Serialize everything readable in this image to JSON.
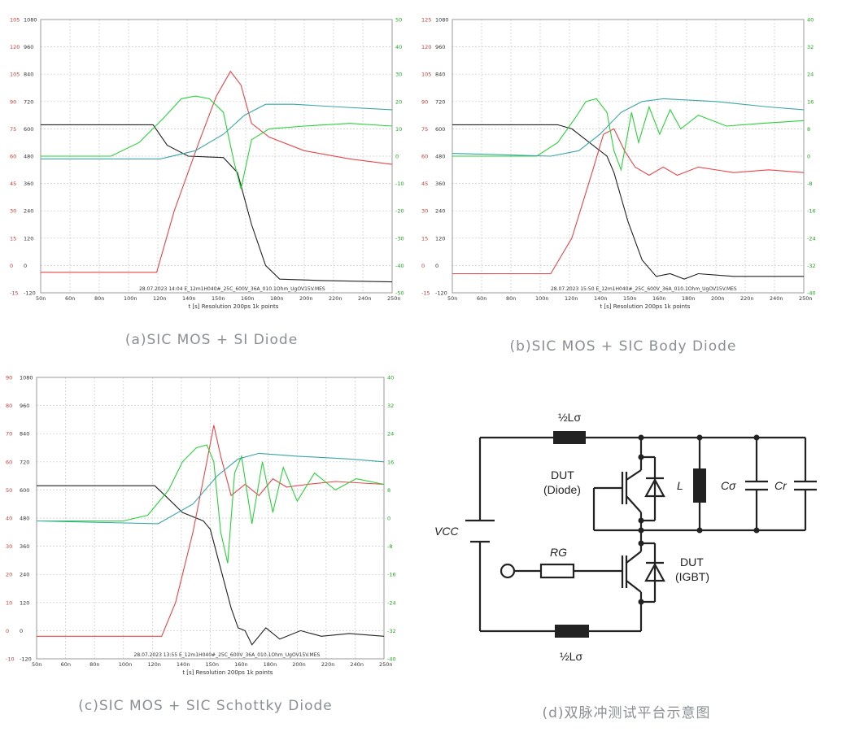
{
  "captions": {
    "a": "(a)SIC MOS + SI Diode",
    "b": "(b)SIC MOS + SIC Body Diode",
    "c": "(c)SIC MOS + SIC Schottky Diode",
    "d": "(d)双脉冲测试平台示意图"
  },
  "colors": {
    "current": "#e8454a",
    "vds": "#222222",
    "vgs": "#2ad13a",
    "vmain": "#3aa6a6"
  },
  "chart_data": [
    {
      "type": "line",
      "id": "a",
      "info": "28.07.2023 14:04  E_12m1H040#_25C_600V_36A_010.1Ohm_UgOV15V.MES",
      "xlabel": "t [s]   Resolution 200ps   1k points",
      "x_ticks": [
        "50n",
        "60n",
        "80n",
        "100n",
        "120n",
        "140n",
        "150n",
        "160n",
        "180n",
        "200n",
        "220n",
        "240n",
        "250n"
      ],
      "left1_ticks": [
        "105",
        "120",
        "105",
        "90",
        "75",
        "60",
        "45",
        "30",
        "15",
        "0",
        "-15"
      ],
      "left2_ticks": [
        "1080",
        "960",
        "840",
        "720",
        "600",
        "480",
        "360",
        "240",
        "120",
        "0",
        "-120"
      ],
      "right_ticks": [
        "50",
        "40",
        "30",
        "20",
        "10",
        "0",
        "-10",
        "-20",
        "-30",
        "-40",
        "-50"
      ],
      "series": [
        {
          "key": "vds",
          "points": [
            [
              0,
              0.615
            ],
            [
              0.32,
              0.615
            ],
            [
              0.36,
              0.54
            ],
            [
              0.42,
              0.5
            ],
            [
              0.52,
              0.495
            ],
            [
              0.56,
              0.44
            ],
            [
              0.6,
              0.25
            ],
            [
              0.64,
              0.1
            ],
            [
              0.68,
              0.05
            ],
            [
              0.8,
              0.045
            ],
            [
              1,
              0.04
            ]
          ]
        },
        {
          "key": "current",
          "points": [
            [
              0,
              0.075
            ],
            [
              0.33,
              0.075
            ],
            [
              0.38,
              0.3
            ],
            [
              0.45,
              0.55
            ],
            [
              0.5,
              0.72
            ],
            [
              0.54,
              0.81
            ],
            [
              0.57,
              0.76
            ],
            [
              0.6,
              0.62
            ],
            [
              0.65,
              0.57
            ],
            [
              0.75,
              0.52
            ],
            [
              0.88,
              0.49
            ],
            [
              1,
              0.47
            ]
          ]
        },
        {
          "key": "vgs",
          "points": [
            [
              0,
              0.5
            ],
            [
              0.2,
              0.5
            ],
            [
              0.28,
              0.55
            ],
            [
              0.35,
              0.64
            ],
            [
              0.4,
              0.71
            ],
            [
              0.44,
              0.72
            ],
            [
              0.48,
              0.71
            ],
            [
              0.52,
              0.66
            ],
            [
              0.55,
              0.48
            ],
            [
              0.57,
              0.38
            ],
            [
              0.6,
              0.56
            ],
            [
              0.65,
              0.6
            ],
            [
              0.75,
              0.61
            ],
            [
              0.88,
              0.62
            ],
            [
              1,
              0.61
            ]
          ]
        },
        {
          "key": "vmain",
          "points": [
            [
              0,
              0.49
            ],
            [
              0.34,
              0.49
            ],
            [
              0.44,
              0.52
            ],
            [
              0.52,
              0.58
            ],
            [
              0.58,
              0.65
            ],
            [
              0.64,
              0.69
            ],
            [
              0.72,
              0.69
            ],
            [
              0.85,
              0.68
            ],
            [
              1,
              0.67
            ]
          ]
        }
      ]
    },
    {
      "type": "line",
      "id": "b",
      "info": "28.07.2023 15:50  E_12m1H040#_25C_600V_36A_010.1Ohm_UgOV15V.MES",
      "xlabel": "t [s]   Resolution 200ps   1k points",
      "x_ticks": [
        "50n",
        "60n",
        "80n",
        "100n",
        "120n",
        "140n",
        "150n",
        "160n",
        "180n",
        "200n",
        "220n",
        "240n",
        "250n"
      ],
      "left1_ticks": [
        "125",
        "120",
        "105",
        "90",
        "75",
        "60",
        "45",
        "30",
        "15",
        "0",
        "-15"
      ],
      "left2_ticks": [
        "1080",
        "960",
        "840",
        "720",
        "600",
        "480",
        "360",
        "240",
        "120",
        "0",
        "-120"
      ],
      "right_ticks": [
        "40",
        "32",
        "24",
        "16",
        "8",
        "0",
        "-8",
        "-16",
        "-24",
        "-32",
        "-40"
      ],
      "series": [
        {
          "key": "vds",
          "points": [
            [
              0,
              0.615
            ],
            [
              0.3,
              0.615
            ],
            [
              0.34,
              0.6
            ],
            [
              0.4,
              0.54
            ],
            [
              0.44,
              0.5
            ],
            [
              0.46,
              0.44
            ],
            [
              0.5,
              0.26
            ],
            [
              0.54,
              0.12
            ],
            [
              0.58,
              0.06
            ],
            [
              0.62,
              0.07
            ],
            [
              0.66,
              0.05
            ],
            [
              0.7,
              0.07
            ],
            [
              0.8,
              0.06
            ],
            [
              1,
              0.06
            ]
          ]
        },
        {
          "key": "current",
          "points": [
            [
              0,
              0.07
            ],
            [
              0.28,
              0.07
            ],
            [
              0.34,
              0.2
            ],
            [
              0.4,
              0.45
            ],
            [
              0.43,
              0.58
            ],
            [
              0.46,
              0.6
            ],
            [
              0.49,
              0.52
            ],
            [
              0.52,
              0.46
            ],
            [
              0.56,
              0.43
            ],
            [
              0.6,
              0.46
            ],
            [
              0.64,
              0.43
            ],
            [
              0.7,
              0.46
            ],
            [
              0.8,
              0.44
            ],
            [
              0.9,
              0.45
            ],
            [
              1,
              0.44
            ]
          ]
        },
        {
          "key": "vgs",
          "points": [
            [
              0,
              0.5
            ],
            [
              0.24,
              0.5
            ],
            [
              0.3,
              0.55
            ],
            [
              0.35,
              0.64
            ],
            [
              0.38,
              0.7
            ],
            [
              0.41,
              0.71
            ],
            [
              0.44,
              0.66
            ],
            [
              0.46,
              0.52
            ],
            [
              0.48,
              0.45
            ],
            [
              0.51,
              0.66
            ],
            [
              0.53,
              0.55
            ],
            [
              0.56,
              0.68
            ],
            [
              0.59,
              0.58
            ],
            [
              0.62,
              0.67
            ],
            [
              0.65,
              0.6
            ],
            [
              0.7,
              0.65
            ],
            [
              0.78,
              0.61
            ],
            [
              0.88,
              0.62
            ],
            [
              1,
              0.63
            ]
          ]
        },
        {
          "key": "vmain",
          "points": [
            [
              0,
              0.51
            ],
            [
              0.28,
              0.5
            ],
            [
              0.36,
              0.52
            ],
            [
              0.42,
              0.58
            ],
            [
              0.48,
              0.66
            ],
            [
              0.54,
              0.7
            ],
            [
              0.6,
              0.71
            ],
            [
              0.75,
              0.7
            ],
            [
              0.9,
              0.68
            ],
            [
              1,
              0.67
            ]
          ]
        }
      ]
    },
    {
      "type": "line",
      "id": "c",
      "info": "28.07.2023 13:55  E_12m1H040#_25C_600V_36A_010.1Ohm_UgOV15V.MES",
      "xlabel": "t [s]   Resolution 200ps   1k points",
      "x_ticks": [
        "50n",
        "60n",
        "80n",
        "100n",
        "120n",
        "140n",
        "150n",
        "160n",
        "180n",
        "200n",
        "220n",
        "240n",
        "250n"
      ],
      "left1_ticks": [
        "90",
        "80",
        "70",
        "60",
        "50",
        "40",
        "30",
        "20",
        "10",
        "0",
        "-10"
      ],
      "left2_ticks": [
        "1080",
        "960",
        "840",
        "720",
        "600",
        "480",
        "360",
        "240",
        "120",
        "0",
        "-120"
      ],
      "right_ticks": [
        "40",
        "32",
        "24",
        "16",
        "8",
        "0",
        "-8",
        "-16",
        "-24",
        "-32",
        "-40"
      ],
      "series": [
        {
          "key": "vds",
          "points": [
            [
              0,
              0.615
            ],
            [
              0.34,
              0.615
            ],
            [
              0.37,
              0.58
            ],
            [
              0.42,
              0.52
            ],
            [
              0.48,
              0.49
            ],
            [
              0.5,
              0.46
            ],
            [
              0.53,
              0.32
            ],
            [
              0.56,
              0.18
            ],
            [
              0.58,
              0.11
            ],
            [
              0.6,
              0.1
            ],
            [
              0.62,
              0.05
            ],
            [
              0.66,
              0.11
            ],
            [
              0.7,
              0.07
            ],
            [
              0.76,
              0.1
            ],
            [
              0.82,
              0.08
            ],
            [
              0.9,
              0.09
            ],
            [
              1,
              0.08
            ]
          ]
        },
        {
          "key": "current",
          "points": [
            [
              0,
              0.08
            ],
            [
              0.36,
              0.08
            ],
            [
              0.4,
              0.2
            ],
            [
              0.45,
              0.45
            ],
            [
              0.49,
              0.7
            ],
            [
              0.51,
              0.83
            ],
            [
              0.53,
              0.72
            ],
            [
              0.56,
              0.58
            ],
            [
              0.6,
              0.62
            ],
            [
              0.64,
              0.58
            ],
            [
              0.68,
              0.64
            ],
            [
              0.72,
              0.61
            ],
            [
              0.78,
              0.62
            ],
            [
              0.86,
              0.63
            ],
            [
              1,
              0.62
            ]
          ]
        },
        {
          "key": "vgs",
          "points": [
            [
              0,
              0.49
            ],
            [
              0.25,
              0.49
            ],
            [
              0.32,
              0.51
            ],
            [
              0.38,
              0.6
            ],
            [
              0.42,
              0.7
            ],
            [
              0.46,
              0.75
            ],
            [
              0.49,
              0.76
            ],
            [
              0.51,
              0.7
            ],
            [
              0.53,
              0.45
            ],
            [
              0.55,
              0.34
            ],
            [
              0.57,
              0.66
            ],
            [
              0.59,
              0.72
            ],
            [
              0.62,
              0.48
            ],
            [
              0.65,
              0.7
            ],
            [
              0.68,
              0.52
            ],
            [
              0.71,
              0.68
            ],
            [
              0.75,
              0.56
            ],
            [
              0.8,
              0.66
            ],
            [
              0.86,
              0.6
            ],
            [
              0.92,
              0.64
            ],
            [
              1,
              0.62
            ]
          ]
        },
        {
          "key": "vmain",
          "points": [
            [
              0,
              0.49
            ],
            [
              0.35,
              0.48
            ],
            [
              0.45,
              0.55
            ],
            [
              0.52,
              0.65
            ],
            [
              0.58,
              0.71
            ],
            [
              0.64,
              0.73
            ],
            [
              0.75,
              0.72
            ],
            [
              0.9,
              0.71
            ],
            [
              1,
              0.7
            ]
          ]
        }
      ]
    }
  ],
  "circuit": {
    "l_top": "½Lσ",
    "l_bottom": "½Lσ",
    "dut_diode": [
      "DUT",
      "(Diode)"
    ],
    "dut_igbt": [
      "DUT",
      "(IGBT)"
    ],
    "inductor": "L",
    "c_sigma": "Cσ",
    "c_r": "Cr",
    "vcc": "VCC",
    "rg": "RG"
  }
}
